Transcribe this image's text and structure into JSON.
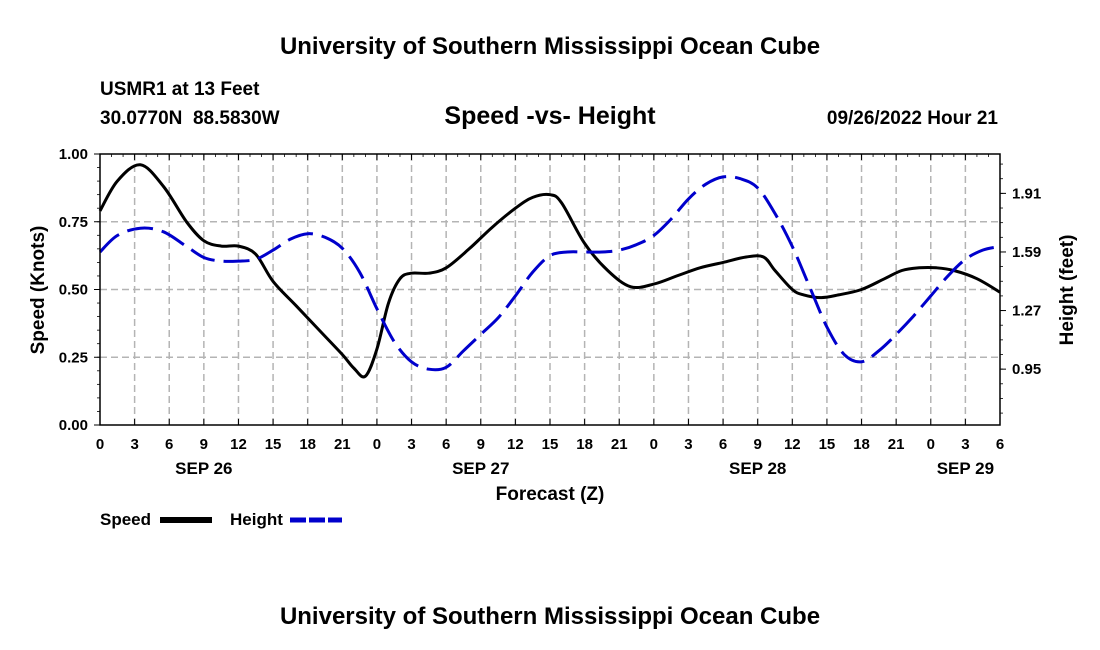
{
  "header": {
    "title": "University of Southern Mississippi Ocean Cube",
    "station": "USMR1 at 13 Feet",
    "coords": "30.0770N  88.5830W",
    "subtitle": "Speed -vs- Height",
    "datetime": "09/26/2022 Hour 21"
  },
  "footer": {
    "title": "University of Southern Mississippi Ocean Cube"
  },
  "chart_data": {
    "type": "line",
    "title": "Speed -vs- Height",
    "xlabel": "Forecast (Z)",
    "ylabel": "Speed (Knots)",
    "y2label": "Height (feet)",
    "xlim": [
      0,
      78
    ],
    "ylim": [
      0,
      1.0
    ],
    "y2lim": [
      0.645,
      2.125
    ],
    "x_tick_labels": [
      "0",
      "3",
      "6",
      "9",
      "12",
      "15",
      "18",
      "21",
      "0",
      "3",
      "6",
      "9",
      "12",
      "15",
      "18",
      "21",
      "0",
      "3",
      "6",
      "9",
      "12",
      "15",
      "18",
      "21",
      "0",
      "3",
      "6"
    ],
    "date_labels": [
      {
        "x": 9,
        "label": "SEP 26"
      },
      {
        "x": 33,
        "label": "SEP 27"
      },
      {
        "x": 57,
        "label": "SEP 28"
      },
      {
        "x": 75,
        "label": "SEP 29"
      }
    ],
    "y_ticks": [
      "0.00",
      "0.25",
      "0.50",
      "0.75",
      "1.00"
    ],
    "y2_ticks": [
      "0.95",
      "1.27",
      "1.59",
      "1.91"
    ],
    "grid": true,
    "legend": {
      "position": "bottom-left",
      "speed_label": "Speed",
      "height_label": "Height"
    },
    "colors": {
      "speed": "#000000",
      "height": "#0000cc",
      "grid": "#b4b4b4"
    },
    "series": [
      {
        "name": "Speed",
        "axis": "left",
        "style": "solid",
        "x": [
          0,
          1.5,
          3.5,
          5.5,
          7.5,
          9,
          10.5,
          12,
          13.5,
          15,
          17,
          19,
          21,
          22,
          23,
          24,
          25,
          26,
          27,
          28.5,
          30,
          32,
          34,
          36,
          37.5,
          39,
          40,
          42,
          44,
          46,
          48,
          50,
          52,
          54,
          56,
          57.5,
          58.5,
          60,
          61,
          62.5,
          64,
          66,
          68,
          69.5,
          71,
          72.5,
          74,
          76,
          78
        ],
        "values": [
          0.79,
          0.9,
          0.96,
          0.88,
          0.75,
          0.68,
          0.66,
          0.66,
          0.63,
          0.53,
          0.44,
          0.35,
          0.26,
          0.21,
          0.18,
          0.28,
          0.45,
          0.54,
          0.56,
          0.56,
          0.58,
          0.65,
          0.73,
          0.8,
          0.84,
          0.85,
          0.82,
          0.67,
          0.57,
          0.51,
          0.52,
          0.55,
          0.58,
          0.6,
          0.62,
          0.62,
          0.57,
          0.5,
          0.48,
          0.47,
          0.48,
          0.5,
          0.54,
          0.57,
          0.58,
          0.58,
          0.57,
          0.54,
          0.49
        ]
      },
      {
        "name": "Height",
        "axis": "right",
        "style": "dashed",
        "x": [
          0,
          1.5,
          3.5,
          5.5,
          7.5,
          9,
          10.5,
          12,
          13.5,
          15,
          16.5,
          18,
          19.5,
          21,
          22.5,
          24,
          25.5,
          27,
          28.5,
          30,
          31.5,
          33,
          34.5,
          36,
          37.5,
          39,
          40.5,
          42,
          43.5,
          45,
          46.5,
          48,
          49.5,
          51,
          52.5,
          54,
          55.5,
          57,
          58.5,
          60,
          61.5,
          63,
          64.5,
          66,
          67.5,
          69,
          70.5,
          72,
          73.5,
          75,
          76.5,
          78
        ],
        "values": [
          1.59,
          1.68,
          1.72,
          1.7,
          1.62,
          1.56,
          1.54,
          1.54,
          1.55,
          1.6,
          1.66,
          1.69,
          1.67,
          1.61,
          1.48,
          1.28,
          1.1,
          0.99,
          0.95,
          0.96,
          1.05,
          1.14,
          1.23,
          1.35,
          1.48,
          1.57,
          1.59,
          1.59,
          1.59,
          1.6,
          1.63,
          1.68,
          1.77,
          1.88,
          1.96,
          2.0,
          1.99,
          1.94,
          1.8,
          1.62,
          1.4,
          1.18,
          1.03,
          0.99,
          1.05,
          1.14,
          1.24,
          1.35,
          1.46,
          1.55,
          1.6,
          1.62
        ]
      }
    ]
  }
}
